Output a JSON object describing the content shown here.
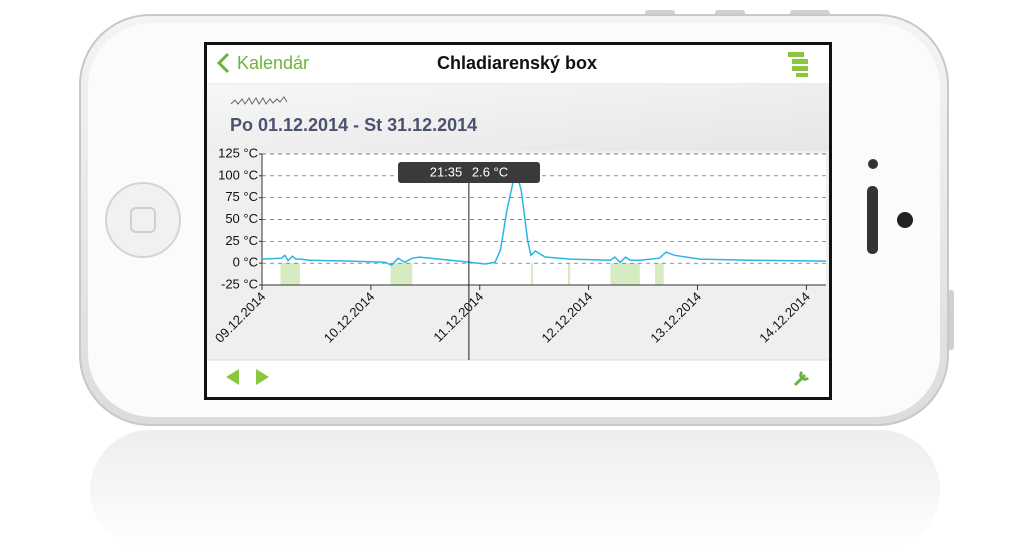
{
  "header": {
    "back": "Kalendár",
    "title": "Chladiarenský box"
  },
  "date_range": "Po 01.12.2014 - St 31.12.2014",
  "tooltip": {
    "time": "21:35",
    "value": "2.6 °C"
  },
  "chart_data": {
    "type": "line",
    "x": [
      9.0,
      9.18,
      9.21,
      9.24,
      9.28,
      9.31,
      9.35,
      9.44,
      9.81,
      10.13,
      10.19,
      10.25,
      10.31,
      10.38,
      10.45,
      10.63,
      10.91,
      11.05,
      11.14,
      11.19,
      11.25,
      11.31,
      11.34,
      11.38,
      11.44,
      11.47,
      11.51,
      11.6,
      11.83,
      12.2,
      12.24,
      12.29,
      12.34,
      12.38,
      12.47,
      12.65,
      12.71,
      12.79,
      13.02,
      13.49,
      14.18
    ],
    "series": [
      {
        "color": "#29b6e6",
        "values": [
          4.6,
          5.7,
          9,
          3,
          8,
          4.6,
          4.6,
          3.4,
          2.3,
          1.1,
          -2.3,
          5.7,
          1,
          5.7,
          6.9,
          4.6,
          1,
          -1,
          1,
          15,
          61,
          95,
          101,
          84,
          26,
          9,
          14,
          7,
          4.6,
          3.4,
          6.9,
          1,
          6.9,
          3.4,
          3.4,
          5.7,
          12.6,
          9,
          4.6,
          3.4,
          2.3
        ]
      }
    ],
    "events": {
      "color": "#d6ebc2",
      "ranges": [
        [
          9.17,
          9.35
        ],
        [
          10.18,
          10.38
        ],
        [
          11.47,
          11.49
        ],
        [
          11.81,
          11.83
        ],
        [
          12.2,
          12.47
        ],
        [
          12.61,
          12.69
        ]
      ]
    },
    "cursor": 10.9,
    "xlim": [
      9.0,
      14.18
    ],
    "xticks": [
      {
        "value": 9,
        "label": "09.12.2014"
      },
      {
        "value": 10,
        "label": "10.12.2014"
      },
      {
        "value": 11,
        "label": "11.12.2014"
      },
      {
        "value": 12,
        "label": "12.12.2014"
      },
      {
        "value": 13,
        "label": "13.12.2014"
      },
      {
        "value": 14,
        "label": "14.12.2014"
      }
    ],
    "ylim": [
      -25,
      125
    ],
    "yticks": [
      {
        "value": -25,
        "label": "-25 °C"
      },
      {
        "value": 0,
        "label": "0 °C"
      },
      {
        "value": 25,
        "label": "25 °C"
      },
      {
        "value": 50,
        "label": "50 °C"
      },
      {
        "value": 75,
        "label": "75 °C"
      },
      {
        "value": 100,
        "label": "100 °C"
      },
      {
        "value": 125,
        "label": "125 °C"
      }
    ],
    "grid": true
  }
}
